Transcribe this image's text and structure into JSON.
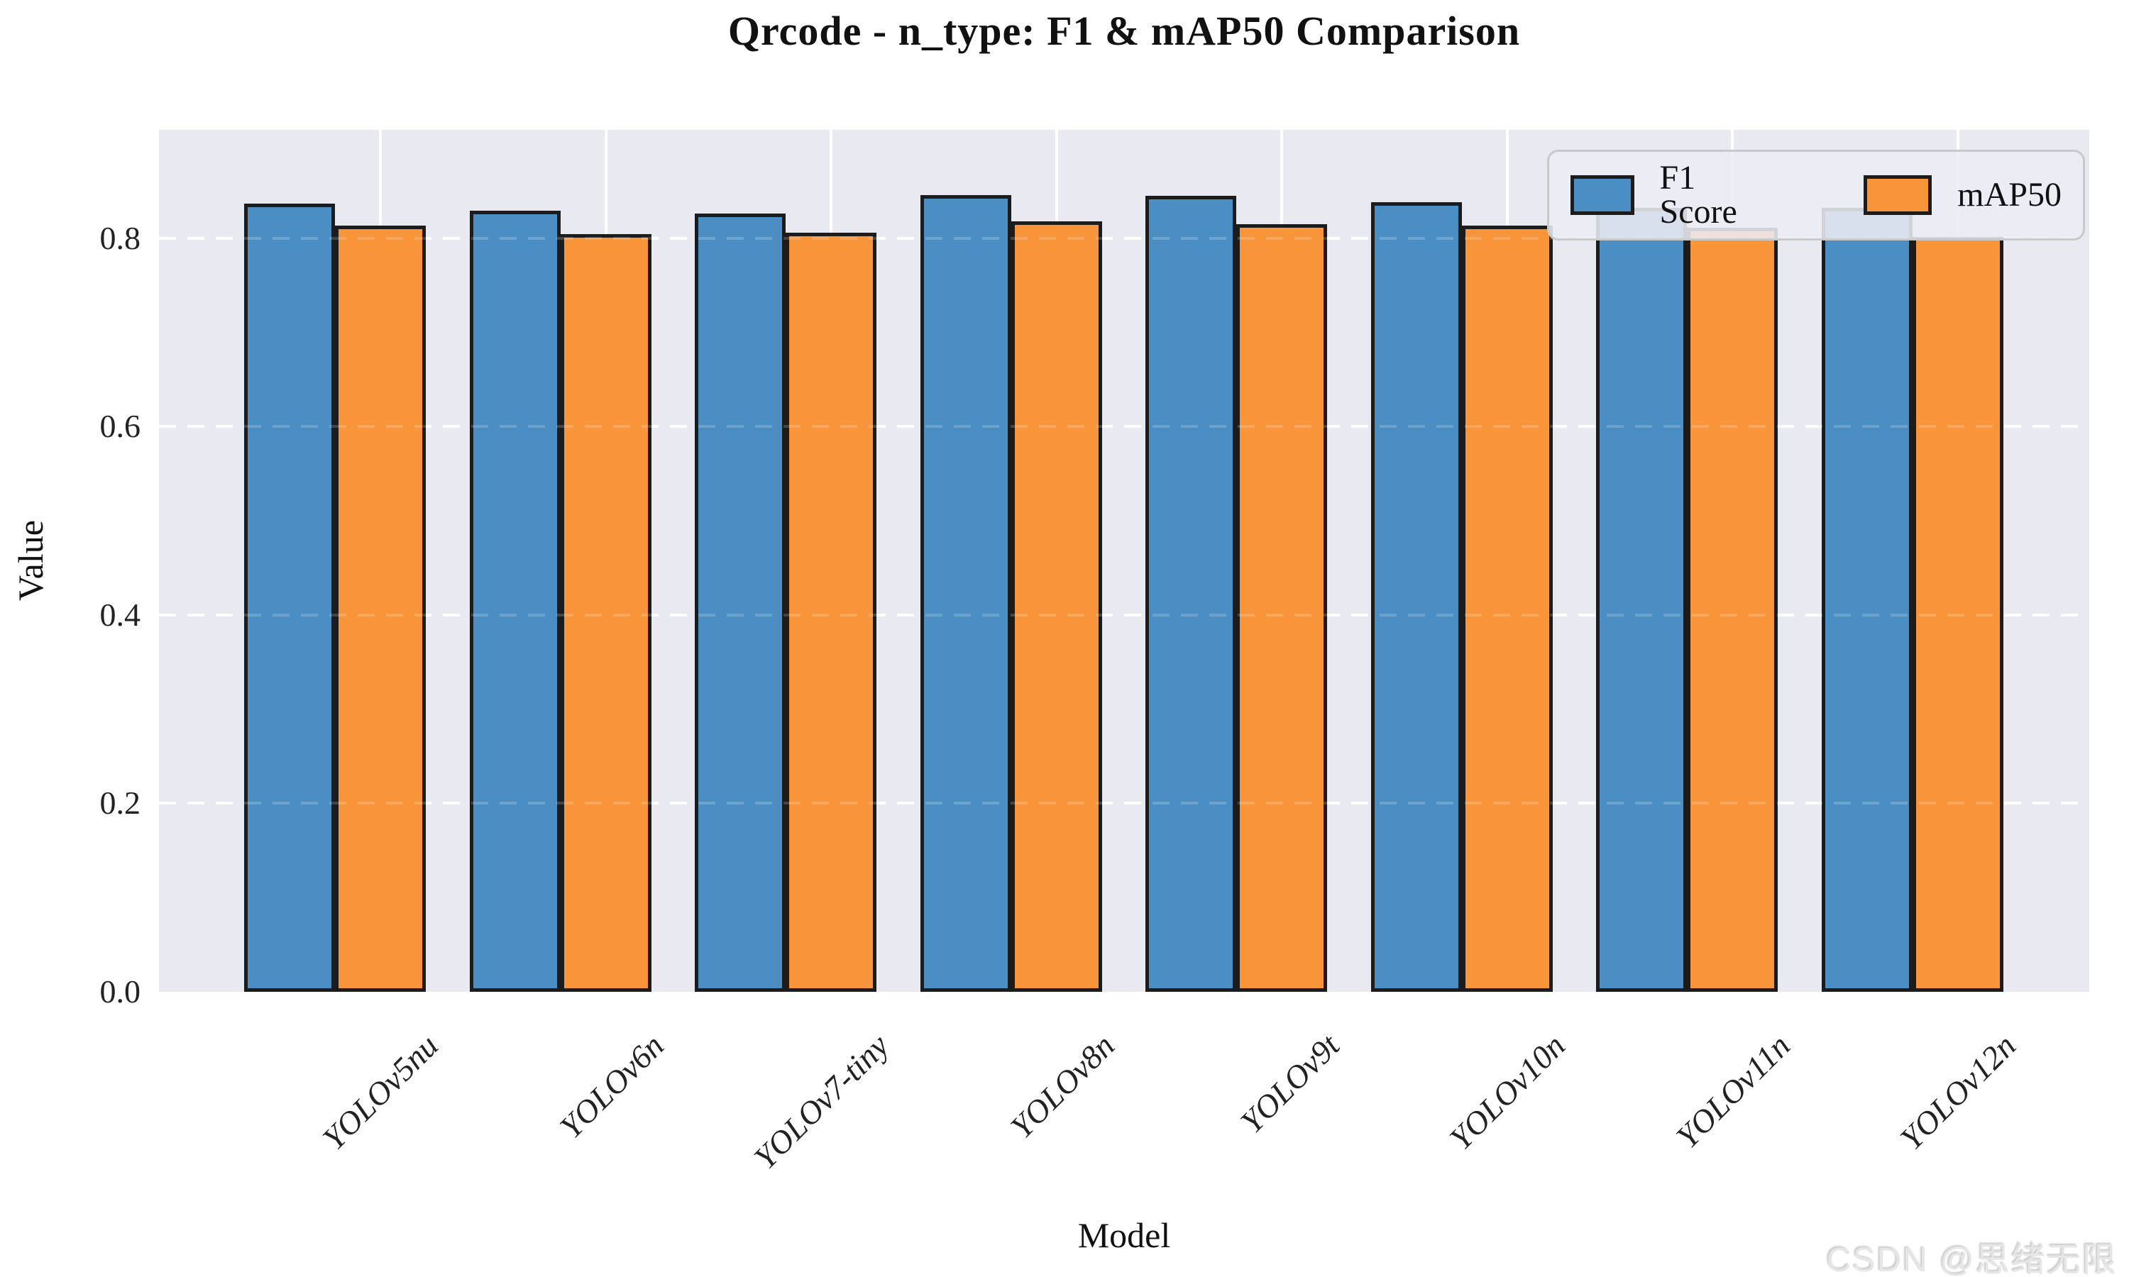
{
  "watermark": "CSDN @思绪无限",
  "chart_data": {
    "type": "bar",
    "title": "Qrcode - n_type: F1 & mAP50 Comparison",
    "xlabel": "Model",
    "ylabel": "Value",
    "categories": [
      "YOLOv5nu",
      "YOLOv6n",
      "YOLOv7-tiny",
      "YOLOv8n",
      "YOLOv9t",
      "YOLOv10n",
      "YOLOv11n",
      "YOLOv12n"
    ],
    "series": [
      {
        "name": "F1 Score",
        "color": "#4A8EC3",
        "values": [
          0.837,
          0.829,
          0.826,
          0.846,
          0.845,
          0.838,
          0.832,
          0.832
        ]
      },
      {
        "name": "mAP50",
        "color": "#F89439",
        "values": [
          0.813,
          0.804,
          0.806,
          0.818,
          0.815,
          0.813,
          0.811,
          0.801
        ]
      }
    ],
    "ylim": [
      0,
      0.915
    ],
    "yticks": [
      "0.0",
      "0.2",
      "0.4",
      "0.6",
      "0.8"
    ],
    "grid": true,
    "grid_style": "horizontal dashed white, vertical solid white",
    "plot_background": "#E9E9F1",
    "bar_edge_color": "#1c1c1c",
    "legend_position": "upper right"
  }
}
